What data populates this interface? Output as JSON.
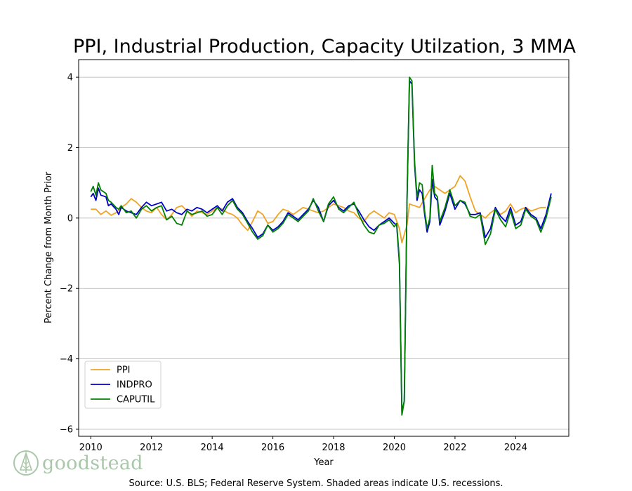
{
  "chart_data": {
    "type": "line",
    "title": "PPI, Industrial Production, Capacity Utilzation, 3 MMA",
    "xlabel": "Year",
    "ylabel": "Percent Change from Month Prior",
    "source": "Source: U.S. BLS; Federal Reserve System. Shaded areas indicate U.S. recessions.",
    "xlim": [
      2009.6,
      2025.75
    ],
    "ylim": [
      -6.2,
      4.5
    ],
    "xticks": [
      2010,
      2012,
      2014,
      2016,
      2018,
      2020,
      2022,
      2024
    ],
    "yticks": [
      -6,
      -4,
      -2,
      0,
      2,
      4
    ],
    "grid": "horizontal",
    "legend_position": "lower-left",
    "series": [
      {
        "name": "PPI",
        "color": "#f0a323",
        "points": [
          [
            2010.0,
            0.25
          ],
          [
            2010.17,
            0.25
          ],
          [
            2010.33,
            0.1
          ],
          [
            2010.5,
            0.2
          ],
          [
            2010.67,
            0.08
          ],
          [
            2010.83,
            0.15
          ],
          [
            2011.0,
            0.3
          ],
          [
            2011.17,
            0.4
          ],
          [
            2011.33,
            0.55
          ],
          [
            2011.5,
            0.45
          ],
          [
            2011.67,
            0.3
          ],
          [
            2011.83,
            0.2
          ],
          [
            2012.0,
            0.15
          ],
          [
            2012.17,
            0.3
          ],
          [
            2012.33,
            0.1
          ],
          [
            2012.5,
            -0.05
          ],
          [
            2012.67,
            0.1
          ],
          [
            2012.83,
            0.3
          ],
          [
            2013.0,
            0.35
          ],
          [
            2013.17,
            0.2
          ],
          [
            2013.33,
            0.05
          ],
          [
            2013.5,
            0.2
          ],
          [
            2013.67,
            0.15
          ],
          [
            2013.83,
            0.1
          ],
          [
            2014.0,
            0.2
          ],
          [
            2014.17,
            0.3
          ],
          [
            2014.33,
            0.25
          ],
          [
            2014.5,
            0.15
          ],
          [
            2014.67,
            0.1
          ],
          [
            2014.83,
            0.0
          ],
          [
            2015.0,
            -0.2
          ],
          [
            2015.17,
            -0.35
          ],
          [
            2015.33,
            -0.1
          ],
          [
            2015.5,
            0.2
          ],
          [
            2015.67,
            0.1
          ],
          [
            2015.83,
            -0.15
          ],
          [
            2016.0,
            -0.1
          ],
          [
            2016.17,
            0.1
          ],
          [
            2016.33,
            0.25
          ],
          [
            2016.5,
            0.2
          ],
          [
            2016.67,
            0.1
          ],
          [
            2016.83,
            0.2
          ],
          [
            2017.0,
            0.3
          ],
          [
            2017.17,
            0.25
          ],
          [
            2017.33,
            0.2
          ],
          [
            2017.5,
            0.15
          ],
          [
            2017.67,
            0.2
          ],
          [
            2017.83,
            0.3
          ],
          [
            2018.0,
            0.4
          ],
          [
            2018.17,
            0.35
          ],
          [
            2018.33,
            0.3
          ],
          [
            2018.5,
            0.2
          ],
          [
            2018.67,
            0.15
          ],
          [
            2018.83,
            0.0
          ],
          [
            2019.0,
            -0.1
          ],
          [
            2019.17,
            0.1
          ],
          [
            2019.33,
            0.2
          ],
          [
            2019.5,
            0.1
          ],
          [
            2019.67,
            0.0
          ],
          [
            2019.83,
            0.15
          ],
          [
            2020.0,
            0.1
          ],
          [
            2020.17,
            -0.3
          ],
          [
            2020.25,
            -0.7
          ],
          [
            2020.42,
            -0.2
          ],
          [
            2020.5,
            0.4
          ],
          [
            2020.67,
            0.35
          ],
          [
            2020.83,
            0.3
          ],
          [
            2021.0,
            0.55
          ],
          [
            2021.17,
            0.8
          ],
          [
            2021.33,
            0.9
          ],
          [
            2021.5,
            0.8
          ],
          [
            2021.67,
            0.7
          ],
          [
            2021.83,
            0.8
          ],
          [
            2022.0,
            0.9
          ],
          [
            2022.17,
            1.2
          ],
          [
            2022.33,
            1.05
          ],
          [
            2022.5,
            0.6
          ],
          [
            2022.67,
            0.2
          ],
          [
            2022.83,
            0.1
          ],
          [
            2023.0,
            0.0
          ],
          [
            2023.17,
            0.15
          ],
          [
            2023.33,
            0.25
          ],
          [
            2023.5,
            0.1
          ],
          [
            2023.67,
            0.2
          ],
          [
            2023.83,
            0.4
          ],
          [
            2024.0,
            0.15
          ],
          [
            2024.17,
            0.25
          ],
          [
            2024.33,
            0.3
          ],
          [
            2024.5,
            0.2
          ],
          [
            2024.67,
            0.25
          ],
          [
            2024.83,
            0.3
          ],
          [
            2025.0,
            0.3
          ]
        ]
      },
      {
        "name": "INDPRO",
        "color": "#0000cc",
        "points": [
          [
            2010.0,
            0.6
          ],
          [
            2010.08,
            0.7
          ],
          [
            2010.17,
            0.5
          ],
          [
            2010.25,
            0.85
          ],
          [
            2010.33,
            0.65
          ],
          [
            2010.5,
            0.6
          ],
          [
            2010.58,
            0.35
          ],
          [
            2010.67,
            0.4
          ],
          [
            2010.83,
            0.25
          ],
          [
            2010.92,
            0.1
          ],
          [
            2011.0,
            0.3
          ],
          [
            2011.17,
            0.2
          ],
          [
            2011.33,
            0.15
          ],
          [
            2011.5,
            0.1
          ],
          [
            2011.67,
            0.3
          ],
          [
            2011.83,
            0.45
          ],
          [
            2012.0,
            0.35
          ],
          [
            2012.17,
            0.4
          ],
          [
            2012.33,
            0.45
          ],
          [
            2012.5,
            0.2
          ],
          [
            2012.67,
            0.25
          ],
          [
            2012.83,
            0.15
          ],
          [
            2013.0,
            0.1
          ],
          [
            2013.17,
            0.25
          ],
          [
            2013.33,
            0.2
          ],
          [
            2013.5,
            0.3
          ],
          [
            2013.67,
            0.25
          ],
          [
            2013.83,
            0.15
          ],
          [
            2014.0,
            0.25
          ],
          [
            2014.17,
            0.35
          ],
          [
            2014.33,
            0.2
          ],
          [
            2014.5,
            0.45
          ],
          [
            2014.67,
            0.55
          ],
          [
            2014.83,
            0.3
          ],
          [
            2015.0,
            0.15
          ],
          [
            2015.17,
            -0.1
          ],
          [
            2015.33,
            -0.3
          ],
          [
            2015.5,
            -0.55
          ],
          [
            2015.67,
            -0.45
          ],
          [
            2015.83,
            -0.2
          ],
          [
            2016.0,
            -0.35
          ],
          [
            2016.17,
            -0.25
          ],
          [
            2016.33,
            -0.1
          ],
          [
            2016.5,
            0.15
          ],
          [
            2016.67,
            0.05
          ],
          [
            2016.83,
            -0.05
          ],
          [
            2017.0,
            0.1
          ],
          [
            2017.17,
            0.25
          ],
          [
            2017.33,
            0.5
          ],
          [
            2017.5,
            0.3
          ],
          [
            2017.67,
            -0.1
          ],
          [
            2017.83,
            0.35
          ],
          [
            2018.0,
            0.5
          ],
          [
            2018.17,
            0.3
          ],
          [
            2018.33,
            0.2
          ],
          [
            2018.5,
            0.35
          ],
          [
            2018.67,
            0.4
          ],
          [
            2018.83,
            0.2
          ],
          [
            2019.0,
            -0.05
          ],
          [
            2019.17,
            -0.25
          ],
          [
            2019.33,
            -0.35
          ],
          [
            2019.5,
            -0.2
          ],
          [
            2019.67,
            -0.1
          ],
          [
            2019.83,
            0.0
          ],
          [
            2020.0,
            -0.15
          ],
          [
            2020.08,
            -0.2
          ],
          [
            2020.17,
            -1.3
          ],
          [
            2020.25,
            -5.5
          ],
          [
            2020.33,
            -5.2
          ],
          [
            2020.42,
            0.5
          ],
          [
            2020.5,
            3.9
          ],
          [
            2020.58,
            3.8
          ],
          [
            2020.67,
            1.5
          ],
          [
            2020.75,
            0.5
          ],
          [
            2020.83,
            0.8
          ],
          [
            2020.92,
            0.7
          ],
          [
            2021.0,
            0.1
          ],
          [
            2021.08,
            -0.4
          ],
          [
            2021.17,
            -0.1
          ],
          [
            2021.25,
            1.1
          ],
          [
            2021.33,
            0.6
          ],
          [
            2021.42,
            0.5
          ],
          [
            2021.5,
            -0.2
          ],
          [
            2021.67,
            0.2
          ],
          [
            2021.83,
            0.7
          ],
          [
            2022.0,
            0.25
          ],
          [
            2022.17,
            0.5
          ],
          [
            2022.33,
            0.4
          ],
          [
            2022.5,
            0.1
          ],
          [
            2022.67,
            0.1
          ],
          [
            2022.83,
            0.15
          ],
          [
            2023.0,
            -0.55
          ],
          [
            2023.17,
            -0.3
          ],
          [
            2023.33,
            0.3
          ],
          [
            2023.5,
            0.05
          ],
          [
            2023.67,
            -0.1
          ],
          [
            2023.83,
            0.3
          ],
          [
            2024.0,
            -0.2
          ],
          [
            2024.17,
            -0.1
          ],
          [
            2024.33,
            0.3
          ],
          [
            2024.5,
            0.1
          ],
          [
            2024.67,
            0.0
          ],
          [
            2024.83,
            -0.3
          ],
          [
            2025.0,
            0.1
          ],
          [
            2025.17,
            0.7
          ]
        ]
      },
      {
        "name": "CAPUTIL",
        "color": "#008000",
        "points": [
          [
            2010.0,
            0.75
          ],
          [
            2010.08,
            0.9
          ],
          [
            2010.17,
            0.65
          ],
          [
            2010.25,
            1.0
          ],
          [
            2010.33,
            0.8
          ],
          [
            2010.5,
            0.7
          ],
          [
            2010.58,
            0.5
          ],
          [
            2010.67,
            0.45
          ],
          [
            2010.83,
            0.3
          ],
          [
            2010.92,
            0.25
          ],
          [
            2011.0,
            0.35
          ],
          [
            2011.17,
            0.15
          ],
          [
            2011.33,
            0.2
          ],
          [
            2011.5,
            0.0
          ],
          [
            2011.67,
            0.25
          ],
          [
            2011.83,
            0.35
          ],
          [
            2012.0,
            0.2
          ],
          [
            2012.17,
            0.3
          ],
          [
            2012.33,
            0.35
          ],
          [
            2012.5,
            -0.05
          ],
          [
            2012.67,
            0.05
          ],
          [
            2012.83,
            -0.15
          ],
          [
            2013.0,
            -0.2
          ],
          [
            2013.17,
            0.2
          ],
          [
            2013.33,
            0.1
          ],
          [
            2013.5,
            0.15
          ],
          [
            2013.67,
            0.2
          ],
          [
            2013.83,
            0.05
          ],
          [
            2014.0,
            0.1
          ],
          [
            2014.17,
            0.3
          ],
          [
            2014.33,
            0.1
          ],
          [
            2014.5,
            0.35
          ],
          [
            2014.67,
            0.5
          ],
          [
            2014.83,
            0.25
          ],
          [
            2015.0,
            0.1
          ],
          [
            2015.17,
            -0.15
          ],
          [
            2015.33,
            -0.4
          ],
          [
            2015.5,
            -0.6
          ],
          [
            2015.67,
            -0.5
          ],
          [
            2015.83,
            -0.2
          ],
          [
            2016.0,
            -0.4
          ],
          [
            2016.17,
            -0.3
          ],
          [
            2016.33,
            -0.15
          ],
          [
            2016.5,
            0.1
          ],
          [
            2016.67,
            0.0
          ],
          [
            2016.83,
            -0.1
          ],
          [
            2017.0,
            0.05
          ],
          [
            2017.17,
            0.2
          ],
          [
            2017.33,
            0.55
          ],
          [
            2017.5,
            0.2
          ],
          [
            2017.67,
            -0.1
          ],
          [
            2017.83,
            0.4
          ],
          [
            2018.0,
            0.6
          ],
          [
            2018.17,
            0.25
          ],
          [
            2018.33,
            0.15
          ],
          [
            2018.5,
            0.3
          ],
          [
            2018.67,
            0.45
          ],
          [
            2018.83,
            0.1
          ],
          [
            2019.0,
            -0.2
          ],
          [
            2019.17,
            -0.4
          ],
          [
            2019.33,
            -0.45
          ],
          [
            2019.5,
            -0.2
          ],
          [
            2019.67,
            -0.15
          ],
          [
            2019.83,
            -0.05
          ],
          [
            2020.0,
            -0.25
          ],
          [
            2020.08,
            -0.15
          ],
          [
            2020.17,
            -1.2
          ],
          [
            2020.25,
            -5.6
          ],
          [
            2020.33,
            -5.2
          ],
          [
            2020.42,
            0.5
          ],
          [
            2020.5,
            4.0
          ],
          [
            2020.58,
            3.9
          ],
          [
            2020.67,
            1.6
          ],
          [
            2020.75,
            0.6
          ],
          [
            2020.83,
            1.0
          ],
          [
            2020.92,
            0.95
          ],
          [
            2021.0,
            0.2
          ],
          [
            2021.08,
            -0.3
          ],
          [
            2021.17,
            0.0
          ],
          [
            2021.25,
            1.5
          ],
          [
            2021.33,
            0.7
          ],
          [
            2021.42,
            0.6
          ],
          [
            2021.5,
            -0.1
          ],
          [
            2021.67,
            0.3
          ],
          [
            2021.83,
            0.8
          ],
          [
            2022.0,
            0.35
          ],
          [
            2022.17,
            0.5
          ],
          [
            2022.33,
            0.45
          ],
          [
            2022.5,
            0.05
          ],
          [
            2022.67,
            0.0
          ],
          [
            2022.83,
            0.1
          ],
          [
            2023.0,
            -0.75
          ],
          [
            2023.17,
            -0.45
          ],
          [
            2023.33,
            0.25
          ],
          [
            2023.5,
            -0.05
          ],
          [
            2023.67,
            -0.25
          ],
          [
            2023.83,
            0.2
          ],
          [
            2024.0,
            -0.3
          ],
          [
            2024.17,
            -0.2
          ],
          [
            2024.33,
            0.25
          ],
          [
            2024.5,
            0.05
          ],
          [
            2024.67,
            -0.05
          ],
          [
            2024.83,
            -0.4
          ],
          [
            2025.0,
            0.0
          ],
          [
            2025.17,
            0.6
          ]
        ]
      }
    ]
  },
  "branding": {
    "logo_text": "goodstead",
    "logo_icon": "pine-tree-icon",
    "logo_color": "#a9c7a9"
  }
}
